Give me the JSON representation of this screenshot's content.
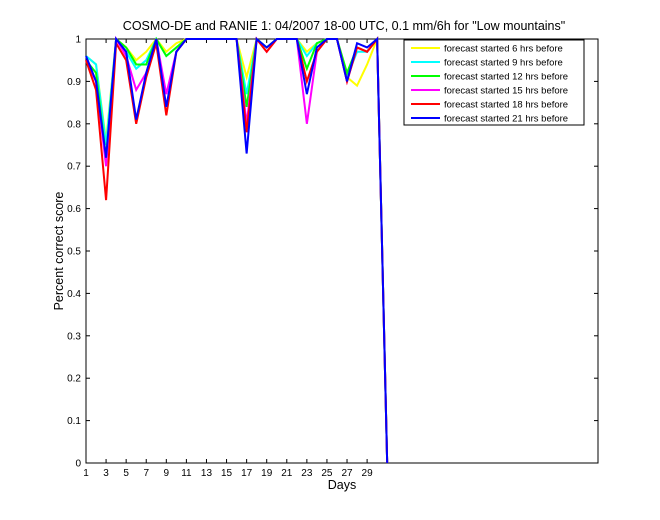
{
  "chart_data": {
    "type": "line",
    "title": "COSMO-DE and RANIE 1: 04/2007 18-00 UTC, 0.1 mm/6h for \"Low mountains\"",
    "xlabel": "Days",
    "ylabel": "Percent correct score",
    "xlim": [
      1,
      52
    ],
    "ylim": [
      0,
      1
    ],
    "xticks": [
      1,
      3,
      5,
      7,
      9,
      11,
      13,
      15,
      17,
      19,
      21,
      23,
      25,
      27,
      29
    ],
    "yticks": [
      0,
      0.1,
      0.2,
      0.3,
      0.4,
      0.5,
      0.6,
      0.7,
      0.8,
      0.9,
      1
    ],
    "ytick_labels": [
      "0",
      "0.1",
      "0.2",
      "0.3",
      "0.4",
      "0.5",
      "0.6",
      "0.7",
      "0.8",
      "0.9",
      "1"
    ],
    "grid": false,
    "legend_position": "top-right",
    "x": [
      1,
      2,
      3,
      4,
      5,
      6,
      7,
      8,
      9,
      10,
      11,
      12,
      13,
      14,
      15,
      16,
      17,
      18,
      19,
      20,
      21,
      22,
      23,
      24,
      25,
      26,
      27,
      28,
      29,
      30,
      31
    ],
    "series": [
      {
        "name": "forecast started 6 hrs before",
        "color": "#ffff00",
        "values": [
          0.96,
          0.94,
          0.76,
          1.0,
          0.98,
          0.95,
          0.97,
          1.0,
          0.97,
          0.99,
          1.0,
          1.0,
          1.0,
          1.0,
          1.0,
          1.0,
          0.91,
          1.0,
          0.98,
          1.0,
          1.0,
          1.0,
          0.97,
          0.99,
          1.0,
          1.0,
          0.91,
          0.89,
          0.94,
          1.0,
          0.0
        ]
      },
      {
        "name": "forecast started 9 hrs before",
        "color": "#00ffff",
        "values": [
          0.96,
          0.94,
          0.75,
          1.0,
          0.97,
          0.93,
          0.95,
          1.0,
          0.96,
          0.98,
          1.0,
          1.0,
          1.0,
          1.0,
          1.0,
          1.0,
          0.87,
          1.0,
          0.98,
          1.0,
          1.0,
          1.0,
          0.96,
          0.99,
          1.0,
          1.0,
          0.91,
          0.97,
          0.97,
          1.0,
          0.0
        ]
      },
      {
        "name": "forecast started 12 hrs before",
        "color": "#00ff00",
        "values": [
          0.95,
          0.92,
          0.72,
          1.0,
          0.98,
          0.94,
          0.94,
          1.0,
          0.96,
          0.98,
          1.0,
          1.0,
          1.0,
          1.0,
          1.0,
          1.0,
          0.84,
          1.0,
          0.98,
          1.0,
          1.0,
          1.0,
          0.93,
          0.99,
          1.0,
          1.0,
          0.92,
          0.98,
          0.97,
          1.0,
          0.0
        ]
      },
      {
        "name": "forecast started 15 hrs before",
        "color": "#ff00ff",
        "values": [
          0.95,
          0.9,
          0.7,
          1.0,
          0.96,
          0.88,
          0.92,
          1.0,
          0.87,
          0.97,
          1.0,
          1.0,
          1.0,
          1.0,
          1.0,
          1.0,
          0.8,
          1.0,
          0.97,
          1.0,
          1.0,
          1.0,
          0.8,
          0.97,
          1.0,
          1.0,
          0.9,
          0.98,
          0.97,
          1.0,
          0.0
        ]
      },
      {
        "name": "forecast started 18 hrs before",
        "color": "#ff0000",
        "values": [
          0.95,
          0.88,
          0.62,
          0.99,
          0.95,
          0.8,
          0.91,
          0.99,
          0.82,
          0.97,
          1.0,
          1.0,
          1.0,
          1.0,
          1.0,
          1.0,
          0.78,
          1.0,
          0.97,
          1.0,
          1.0,
          1.0,
          0.9,
          0.97,
          1.0,
          1.0,
          0.9,
          0.98,
          0.97,
          1.0,
          0.0
        ]
      },
      {
        "name": "forecast started 21 hrs before",
        "color": "#0000ff",
        "values": [
          0.96,
          0.9,
          0.72,
          1.0,
          0.97,
          0.81,
          0.92,
          1.0,
          0.84,
          0.97,
          1.0,
          1.0,
          1.0,
          1.0,
          1.0,
          1.0,
          0.73,
          1.0,
          0.98,
          1.0,
          1.0,
          1.0,
          0.87,
          0.98,
          1.0,
          1.0,
          0.9,
          0.99,
          0.98,
          1.0,
          0.0
        ]
      }
    ]
  }
}
